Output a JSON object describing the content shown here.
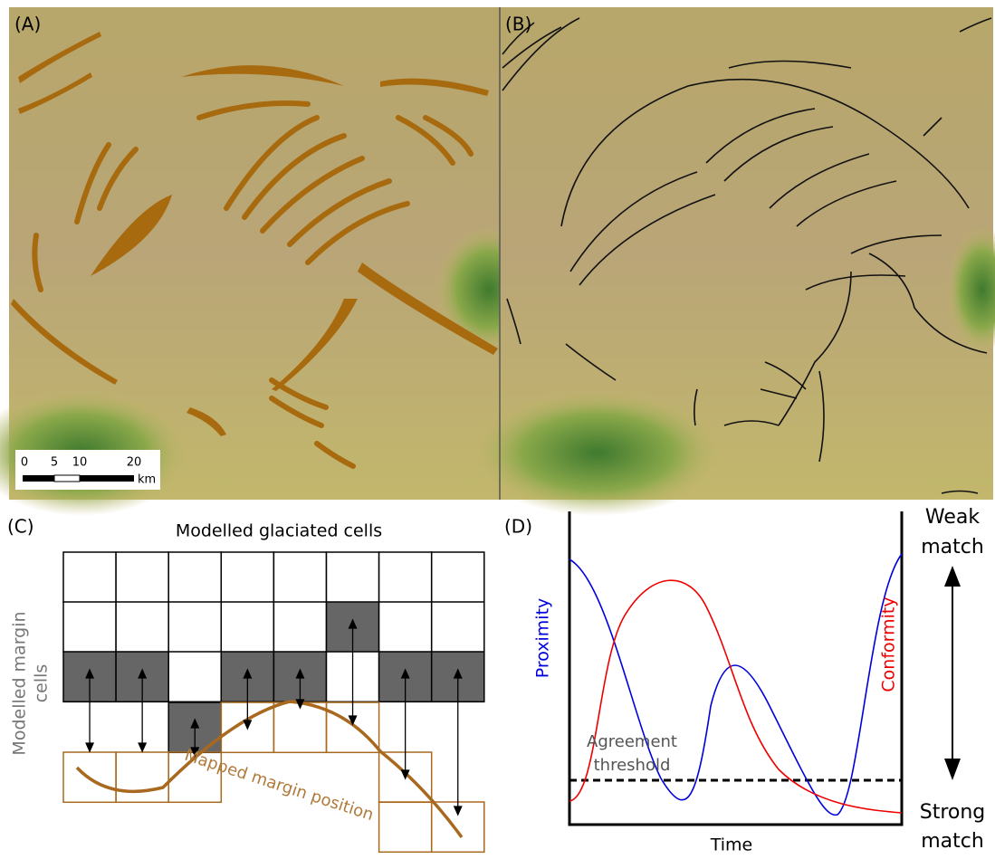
{
  "panels": {
    "a": "(A)",
    "b": "(B)",
    "c": "(C)",
    "d": "(D)"
  },
  "scale_bar": {
    "ticks": [
      "0",
      "5",
      "10",
      "20"
    ],
    "unit": "km"
  },
  "panel_c": {
    "top_label": "Modelled glaciated cells",
    "side_label": [
      "Modelled margin",
      "cells"
    ],
    "curve_label": "Mapped margin position"
  },
  "panel_d": {
    "left_curve": "Proximity",
    "right_curve": "Conformity",
    "threshold": [
      "Agreement",
      "threshold"
    ],
    "x_label": "Time",
    "top": "Weak",
    "top2": "match",
    "bottom": "Strong",
    "bottom2": "match"
  }
}
